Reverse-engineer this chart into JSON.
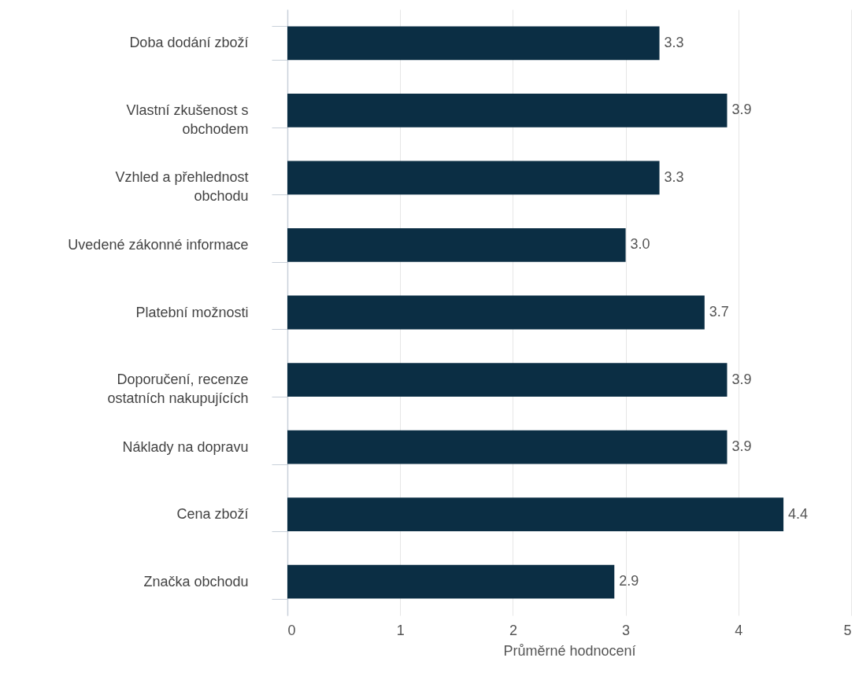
{
  "chart_data": {
    "type": "bar",
    "orientation": "horizontal",
    "xlabel": "Průměrné hodnocení",
    "categories": [
      "Doba dodání zboží",
      "Vlastní zkušenost s obchodem",
      "Vzhled a přehlednost obchodu",
      "Uvedené zákonné informace",
      "Platební možnosti",
      "Doporučení, recenze ostatních nakupujících",
      "Náklady na dopravu",
      "Cena zboží",
      "Značka obchodu"
    ],
    "values": [
      3.3,
      3.9,
      3.3,
      3.0,
      3.7,
      3.9,
      3.9,
      4.4,
      2.9
    ],
    "value_labels": [
      "3.3",
      "3.9",
      "3.3",
      "3.0",
      "3.7",
      "3.9",
      "3.9",
      "4.4",
      "2.9"
    ],
    "color": "#0b2e44",
    "xlim": [
      0,
      5
    ],
    "xticks": [
      0,
      1,
      2,
      3,
      4,
      5
    ],
    "grid": "x"
  }
}
